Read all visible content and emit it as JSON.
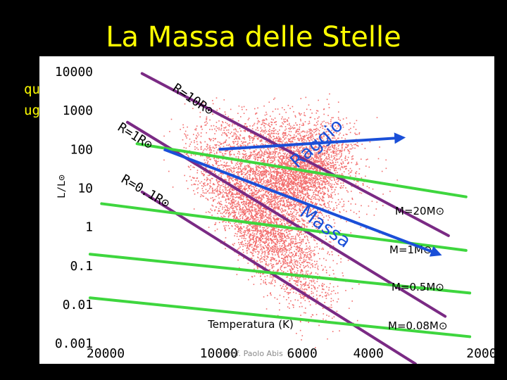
{
  "slide": {
    "title": "La Massa delle Stelle",
    "background_text": [
      "qu",
      "ug"
    ],
    "footer": "Prof. Paolo Abis"
  },
  "colors": {
    "background": "#000000",
    "title": "#ffff00",
    "star_points": "#f26d6d",
    "mass_lines": "#3ed63e",
    "radius_lines": "#7a2a84",
    "arrows": "#1a4fd8"
  },
  "chart_data": {
    "type": "scatter",
    "title": "",
    "xlabel": "Temperatura (K)",
    "ylabel": "L/L⊙",
    "xscale": "log",
    "yscale": "log",
    "x_reversed": true,
    "xlim": [
      30000,
      1850
    ],
    "ylim": [
      0.0003,
      25000
    ],
    "x_ticks": [
      {
        "value": 20000,
        "label": "20000"
      },
      {
        "value": 10000,
        "label": "10000"
      },
      {
        "value": 6000,
        "label": "6000"
      },
      {
        "value": 4000,
        "label": "4000"
      },
      {
        "value": 2000,
        "label": "2000"
      }
    ],
    "y_ticks": [
      {
        "value": 10000,
        "label": "10000"
      },
      {
        "value": 1000,
        "label": "1000"
      },
      {
        "value": 100,
        "label": "100"
      },
      {
        "value": 10,
        "label": "10"
      },
      {
        "value": 1,
        "label": "1"
      },
      {
        "value": 0.1,
        "label": "0.1"
      },
      {
        "value": 0.01,
        "label": "0.01"
      },
      {
        "value": 0.001,
        "label": "0.001"
      }
    ],
    "grid": false,
    "lines": [
      {
        "group": "radius",
        "label": "R=10R⊙",
        "points": [
          [
            16000,
            9000
          ],
          [
            2450,
            0.6
          ]
        ]
      },
      {
        "group": "radius",
        "label": "R=1R⊙",
        "points": [
          [
            17500,
            500
          ],
          [
            2500,
            0.005
          ]
        ]
      },
      {
        "group": "radius",
        "label": "R=0.1R⊙",
        "points": [
          [
            16000,
            8
          ],
          [
            3000,
            0.0003
          ]
        ]
      },
      {
        "group": "mass",
        "label": "M=20M⊙",
        "points": [
          [
            16500,
            140
          ],
          [
            2200,
            6
          ]
        ]
      },
      {
        "group": "mass",
        "label": "M=1M⊙",
        "points": [
          [
            20500,
            4
          ],
          [
            2200,
            0.25
          ]
        ]
      },
      {
        "group": "mass",
        "label": "M=0.5M⊙",
        "points": [
          [
            22000,
            0.2
          ],
          [
            2150,
            0.02
          ]
        ]
      },
      {
        "group": "mass",
        "label": "M=0.08M⊙",
        "points": [
          [
            22000,
            0.015
          ],
          [
            2150,
            0.0015
          ]
        ]
      }
    ],
    "arrows": [
      {
        "label": "Raggio",
        "from": [
          10000,
          100
        ],
        "to": [
          3250,
          200
        ]
      },
      {
        "label": "Massa",
        "from": [
          14000,
          100
        ],
        "to": [
          2600,
          0.2
        ]
      }
    ],
    "point_clouds": [
      {
        "region": "main sequence",
        "center": [
          6000,
          3
        ],
        "count_hint": "dense"
      },
      {
        "region": "giants",
        "center": [
          4200,
          70
        ],
        "count_hint": "dense"
      },
      {
        "region": "supergiants",
        "center": [
          5000,
          1000
        ],
        "count_hint": "sparse"
      }
    ]
  }
}
